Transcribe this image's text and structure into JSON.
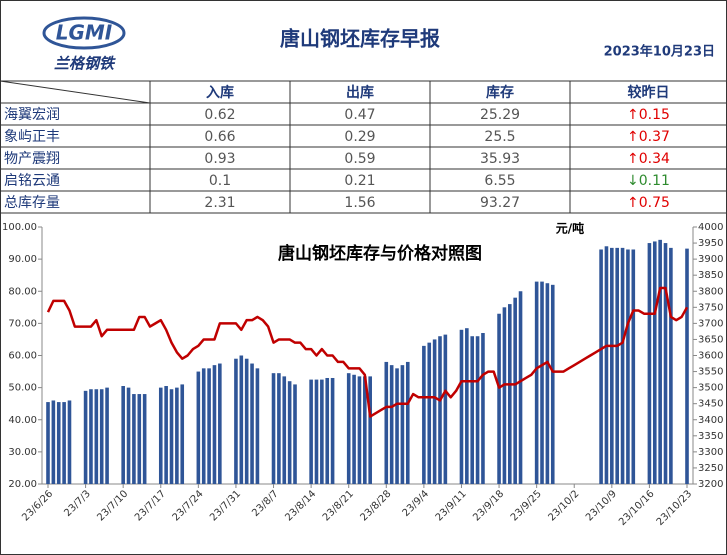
{
  "header": {
    "logo": "LGMI",
    "brand": "兰格钢铁",
    "title": "唐山钢坯库存早报",
    "date": "2023年10月23日"
  },
  "table": {
    "columns": [
      "入库",
      "出库",
      "库存",
      "较昨日"
    ],
    "rows": [
      [
        "海翼宏润",
        "0.62",
        "0.47",
        "25.29",
        "↑0.15"
      ],
      [
        "象屿正丰",
        "0.66",
        "0.29",
        "25.5",
        "↑0.37"
      ],
      [
        "物产震翔",
        "0.93",
        "0.59",
        "35.93",
        "↑0.34"
      ],
      [
        "启铭云通",
        "0.1",
        "0.21",
        "6.55",
        "↓0.11"
      ],
      [
        "总库存量",
        "2.31",
        "1.56",
        "93.27",
        "↑0.75"
      ]
    ]
  },
  "chart_data": {
    "type": "bar",
    "title": "唐山钢坯库存与价格对照图",
    "y2_label": "元/吨",
    "categories": [
      "23/6/26",
      null,
      null,
      null,
      null,
      null,
      null,
      "23/7/3",
      null,
      null,
      null,
      null,
      null,
      null,
      "23/7/10",
      null,
      null,
      null,
      null,
      null,
      null,
      "23/7/17",
      null,
      null,
      null,
      null,
      null,
      null,
      "23/7/24",
      null,
      null,
      null,
      null,
      null,
      null,
      "23/7/31",
      null,
      null,
      null,
      null,
      null,
      null,
      "23/8/7",
      null,
      null,
      null,
      null,
      null,
      null,
      "23/8/14",
      null,
      null,
      null,
      null,
      null,
      null,
      "23/8/21",
      null,
      null,
      null,
      null,
      null,
      null,
      "23/8/28",
      null,
      null,
      null,
      null,
      null,
      null,
      "23/9/4",
      null,
      null,
      null,
      null,
      null,
      null,
      "23/9/11",
      null,
      null,
      null,
      null,
      null,
      null,
      "23/9/18",
      null,
      null,
      null,
      null,
      null,
      null,
      "23/9/25",
      null,
      null,
      null,
      null,
      null,
      null,
      "23/10/2",
      null,
      null,
      null,
      null,
      null,
      null,
      "23/10/9",
      null,
      null,
      null,
      null,
      null,
      null,
      "23/10/16",
      null,
      null,
      null,
      null,
      null,
      null,
      "23/10/23"
    ],
    "series": [
      {
        "color": "#2f5597",
        "values": [
          45.5,
          46,
          45.5,
          45.5,
          46,
          null,
          null,
          49,
          49.5,
          49.5,
          49.5,
          50,
          null,
          null,
          50.5,
          50,
          48,
          48,
          48,
          null,
          null,
          50,
          50.5,
          49.5,
          50,
          51,
          null,
          null,
          55,
          56,
          56,
          57,
          57.5,
          null,
          null,
          59,
          60,
          59,
          57.5,
          56,
          null,
          null,
          54.5,
          54.5,
          53.5,
          52,
          51,
          null,
          null,
          52.5,
          52.5,
          52.5,
          53,
          53,
          null,
          null,
          54.5,
          54,
          53.5,
          53.5,
          53.5,
          null,
          null,
          58,
          57,
          56,
          57,
          58,
          null,
          null,
          63,
          64,
          65,
          66,
          66.5,
          null,
          null,
          68,
          68.5,
          66,
          66,
          67,
          null,
          null,
          73,
          75,
          76,
          78,
          80,
          null,
          null,
          83,
          83,
          82.5,
          82,
          null,
          null,
          null,
          null,
          null,
          null,
          null,
          null,
          93,
          94,
          93.5,
          93.5,
          93.5,
          93,
          93,
          null,
          null,
          95,
          95.5,
          96,
          95,
          93.5,
          null,
          null,
          93.27
        ]
      },
      {
        "type": "line",
        "axis": "y2",
        "color": "#c00000",
        "values": [
          3735,
          3770,
          3770,
          3770,
          3740,
          3690,
          3690,
          3690,
          3690,
          3710,
          3660,
          3680,
          3680,
          3680,
          3680,
          3680,
          3680,
          3720,
          3720,
          3690,
          3700,
          3710,
          3680,
          3640,
          3610,
          3590,
          3600,
          3620,
          3630,
          3650,
          3650,
          3650,
          3700,
          3700,
          3700,
          3700,
          3680,
          3710,
          3710,
          3720,
          3710,
          3690,
          3640,
          3650,
          3650,
          3650,
          3640,
          3640,
          3620,
          3620,
          3600,
          3620,
          3600,
          3600,
          3580,
          3580,
          3560,
          3560,
          3560,
          3540,
          3410,
          3420,
          3430,
          3440,
          3440,
          3450,
          3450,
          3450,
          3480,
          3470,
          3470,
          3470,
          3470,
          3460,
          3490,
          3470,
          3490,
          3520,
          3520,
          3520,
          3520,
          3540,
          3550,
          3550,
          3500,
          3510,
          3510,
          3510,
          3520,
          3530,
          3540,
          3560,
          3570,
          3580,
          3550,
          3550,
          3550,
          3560,
          3570,
          3580,
          3590,
          3600,
          3610,
          3620,
          3630,
          3630,
          3630,
          3640,
          3700,
          3740,
          3740,
          3730,
          3730,
          3730,
          3810,
          3810,
          3720,
          3710,
          3720,
          3750
        ]
      }
    ],
    "ylim": [
      20,
      100
    ],
    "yticks": [
      {
        "value": 20,
        "label": "20.00"
      },
      {
        "value": 30,
        "label": "30.00"
      },
      {
        "value": 40,
        "label": "40.00"
      },
      {
        "value": 50,
        "label": "50.00"
      },
      {
        "value": 60,
        "label": "60.00"
      },
      {
        "value": 70,
        "label": "70.00"
      },
      {
        "value": 80,
        "label": "80.00"
      },
      {
        "value": 90,
        "label": "90.00"
      },
      {
        "value": 100,
        "label": "100.00"
      }
    ],
    "y2lim": [
      3200,
      4000
    ],
    "y2ticks": [
      3200,
      3250,
      3300,
      3350,
      3400,
      3450,
      3500,
      3550,
      3600,
      3650,
      3700,
      3750,
      3800,
      3850,
      3900,
      3950,
      4000
    ],
    "grid": false
  }
}
